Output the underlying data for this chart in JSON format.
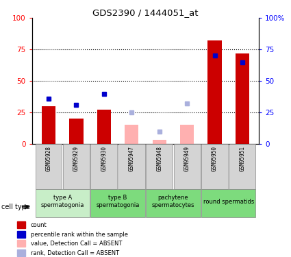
{
  "title": "GDS2390 / 1444051_at",
  "samples": [
    "GSM95928",
    "GSM95929",
    "GSM95930",
    "GSM95947",
    "GSM95948",
    "GSM95949",
    "GSM95950",
    "GSM95951"
  ],
  "count_values": [
    30,
    20,
    27,
    null,
    null,
    null,
    82,
    72
  ],
  "rank_values": [
    36,
    31,
    40,
    null,
    null,
    null,
    70,
    65
  ],
  "count_absent": [
    null,
    null,
    null,
    15,
    3,
    15,
    null,
    null
  ],
  "rank_absent": [
    null,
    null,
    null,
    25,
    10,
    32,
    null,
    null
  ],
  "cell_type_groups": [
    {
      "label": "type A\nspermatogonia",
      "start": 0,
      "end": 1,
      "color": "#c8eec8"
    },
    {
      "label": "type B\nspermatogonia",
      "start": 2,
      "end": 3,
      "color": "#7ddb7d"
    },
    {
      "label": "pachytene\nspermatocytes",
      "start": 4,
      "end": 5,
      "color": "#7ddb7d"
    },
    {
      "label": "round spermatids",
      "start": 6,
      "end": 7,
      "color": "#7ddb7d"
    }
  ],
  "ylim": [
    0,
    100
  ],
  "y_ticks": [
    0,
    25,
    50,
    75,
    100
  ],
  "bar_color_present": "#cc0000",
  "bar_color_absent": "#ffb0b0",
  "rank_color_present": "#0000cc",
  "rank_color_absent": "#aab0dd",
  "bar_width": 0.5,
  "sample_box_color": "#d4d4d4",
  "legend_items": [
    {
      "label": "count",
      "color": "#cc0000"
    },
    {
      "label": "percentile rank within the sample",
      "color": "#0000cc"
    },
    {
      "label": "value, Detection Call = ABSENT",
      "color": "#ffb0b0"
    },
    {
      "label": "rank, Detection Call = ABSENT",
      "color": "#aab0dd"
    }
  ],
  "cell_type_label": "cell type"
}
